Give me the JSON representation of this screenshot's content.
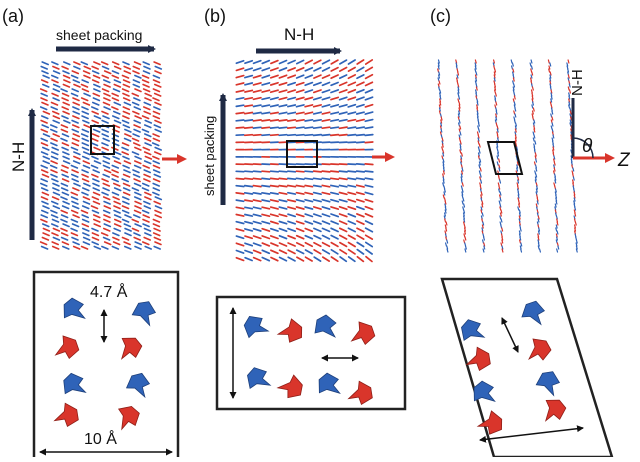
{
  "panels": {
    "a": {
      "label": "(a)",
      "top_arrow_label": "sheet packing",
      "side_arrow_label": "N-H",
      "inset_spacing_label": "4.7 Å",
      "inset_width_label": "10 Å"
    },
    "b": {
      "label": "(b)",
      "top_arrow_label": "N-H",
      "side_arrow_label": "sheet packing"
    },
    "c": {
      "label": "(c)",
      "axis_vertical_label": "N-H",
      "axis_angle_label": "θ",
      "axis_horizontal_label": "Z"
    }
  },
  "colors": {
    "strand_blue": "#2f63b8",
    "strand_red": "#d9352b",
    "arrow_dark": "#1f2a44",
    "arrow_red": "#d9352b",
    "frame": "#222222"
  }
}
